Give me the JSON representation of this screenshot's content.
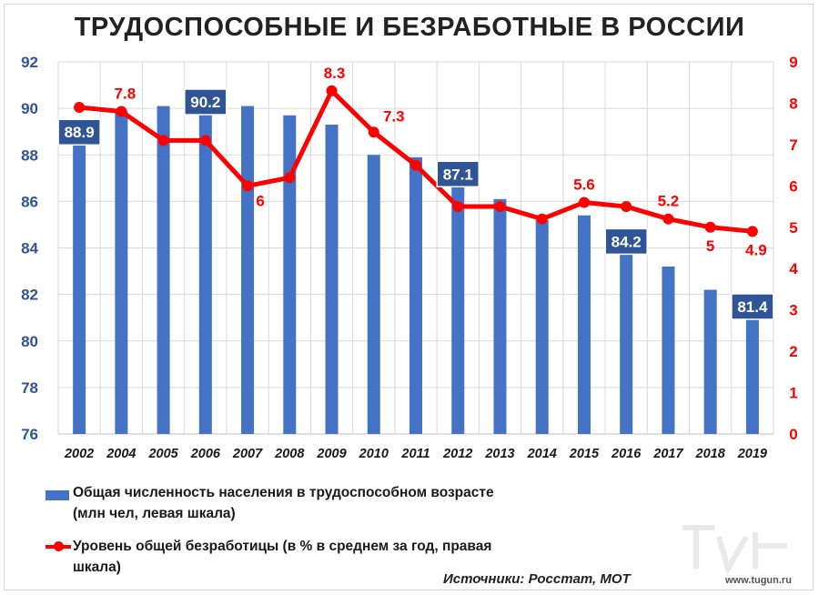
{
  "title": "ТРУДОСПОСОБНЫЕ И БЕЗРАБОТНЫЕ В РОССИИ",
  "chart_data": {
    "type": "bar+line",
    "categories": [
      "2002",
      "2004",
      "2005",
      "2006",
      "2007",
      "2008",
      "2009",
      "2010",
      "2011",
      "2012",
      "2013",
      "2014",
      "2015",
      "2016",
      "2017",
      "2018",
      "2019"
    ],
    "series": [
      {
        "name": "Общая численность населения в трудоспособном возрасте (млн чел, левая шкала)",
        "type": "bar",
        "axis": "left",
        "color": "#4472C4",
        "values": [
          88.9,
          89.9,
          90.1,
          90.2,
          90.1,
          89.7,
          89.3,
          88.0,
          87.9,
          87.1,
          86.1,
          85.2,
          85.4,
          84.2,
          83.2,
          82.2,
          81.4
        ]
      },
      {
        "name": "Уровень общей безработицы (в % в среднем за год, правая шкала)",
        "type": "line",
        "axis": "right",
        "color": "#ff0000",
        "values": [
          7.9,
          7.8,
          7.1,
          7.1,
          6.0,
          6.2,
          8.3,
          7.3,
          6.5,
          5.5,
          5.5,
          5.2,
          5.6,
          5.5,
          5.2,
          5.0,
          4.9
        ]
      }
    ],
    "bar_labels": [
      {
        "index": 0,
        "text": "88.9"
      },
      {
        "index": 3,
        "text": "90.2"
      },
      {
        "index": 9,
        "text": "87.1"
      },
      {
        "index": 13,
        "text": "84.2"
      },
      {
        "index": 16,
        "text": "81.4"
      }
    ],
    "line_labels": [
      {
        "index": 1,
        "text": "7.8"
      },
      {
        "index": 4,
        "text": "6"
      },
      {
        "index": 6,
        "text": "8.3"
      },
      {
        "index": 7,
        "text": "7.3"
      },
      {
        "index": 12,
        "text": "5.6"
      },
      {
        "index": 14,
        "text": "5.2"
      },
      {
        "index": 15,
        "text": "5"
      },
      {
        "index": 16,
        "text": "4.9"
      }
    ],
    "y_left": {
      "min": 76,
      "max": 92,
      "ticks": [
        "76",
        "78",
        "80",
        "82",
        "84",
        "86",
        "88",
        "90",
        "92"
      ]
    },
    "y_right": {
      "min": 0,
      "max": 9,
      "ticks": [
        "0",
        "1",
        "2",
        "3",
        "4",
        "5",
        "6",
        "7",
        "8",
        "9"
      ]
    },
    "grid": true,
    "legend_position": "bottom-left",
    "colors": {
      "bar": "#4472C4",
      "line": "#ff0000",
      "left_axis_text": "#2f5597",
      "right_axis_text": "#ff0000",
      "label_box": "#2f5597"
    }
  },
  "legend": {
    "bar_line1": "Общая численность населения в трудоспособном  возрасте",
    "bar_line2": "(млн чел, левая шкала)",
    "line_line1": "Уровень общей безработицы (в % в среднем за год, правая",
    "line_line2": "шкала)"
  },
  "source": "Источники: Росстат, МОТ",
  "watermark": "www.tugun.ru"
}
